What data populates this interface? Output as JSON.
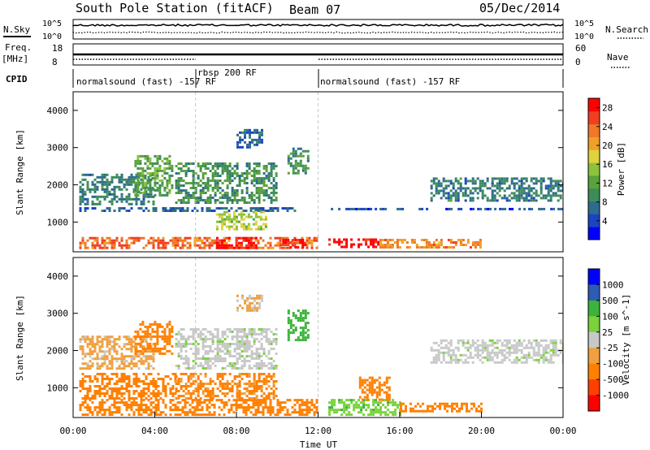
{
  "header": {
    "station": "South Pole Station (fitACF)",
    "beam": "Beam 07",
    "date": "05/Dec/2014"
  },
  "top_panels": {
    "nsky_label": "N.Sky",
    "nsky_ticks": [
      "10^5",
      "10^0"
    ],
    "nsearch_label": "N.Search",
    "nsearch_ticks": [
      "10^5",
      "10^0"
    ],
    "freq_label_1": "Freq.",
    "freq_label_2": "[MHz]",
    "freq_ticks": [
      "18",
      "8"
    ],
    "nave_label": "Nave",
    "nave_ticks": [
      "60",
      "0"
    ],
    "cpid_label": "CPID",
    "cpid_segments": [
      {
        "label": "normalsound (fast) -157 RF",
        "start_hour": 0,
        "end_hour": 6
      },
      {
        "label": "rbsp 200 RF",
        "start_hour": 6,
        "end_hour": 12
      },
      {
        "label": "normalsound (fast) -157 RF",
        "start_hour": 12,
        "end_hour": 24
      }
    ]
  },
  "colors": {
    "power_scale": [
      "#0000ff",
      "#1a44c4",
      "#2d6c8c",
      "#3c8c5a",
      "#5aa23c",
      "#8cc23c",
      "#e0d23c",
      "#f0a028",
      "#f07828",
      "#f04020",
      "#ff0000"
    ],
    "velocity_scale": [
      "#ff0000",
      "#ff4000",
      "#ff8000",
      "#f0a040",
      "#c8c8c8",
      "#c8c8c8",
      "#7ad23c",
      "#3cb43c",
      "#3c8c8c",
      "#2d5cb4",
      "#0000ff"
    ]
  },
  "chart_data": [
    {
      "type": "heatmap",
      "name": "power",
      "ylabel": "Slant Range [km]",
      "xlabel": "",
      "xlim": [
        0,
        24
      ],
      "ylim": [
        200,
        4500
      ],
      "yticks": [
        1000,
        2000,
        3000,
        4000
      ],
      "colorbar_label": "Power [dB]",
      "colorbar_ticks": [
        "4",
        "8",
        "12",
        "16",
        "20",
        "24",
        "28"
      ],
      "colorbar_range": [
        0,
        30
      ],
      "bands": [
        {
          "start_hour": 0.3,
          "end_hour": 12.0,
          "min_km": 300,
          "max_km": 600,
          "level": 24
        },
        {
          "start_hour": 7.0,
          "end_hour": 9.0,
          "min_km": 300,
          "max_km": 600,
          "level": 29
        },
        {
          "start_hour": 10.0,
          "end_hour": 11.5,
          "min_km": 320,
          "max_km": 550,
          "level": 28
        },
        {
          "start_hour": 12.5,
          "end_hour": 15.0,
          "min_km": 300,
          "max_km": 560,
          "level": 29
        },
        {
          "start_hour": 15.0,
          "end_hour": 20.0,
          "min_km": 350,
          "max_km": 550,
          "level": 22
        },
        {
          "start_hour": 0.3,
          "end_hour": 11.0,
          "min_km": 1300,
          "max_km": 1400,
          "level": 6
        },
        {
          "start_hour": 12.5,
          "end_hour": 24.0,
          "min_km": 1320,
          "max_km": 1380,
          "level": 5
        },
        {
          "start_hour": 0.3,
          "end_hour": 4.0,
          "min_km": 1500,
          "max_km": 2300,
          "level": 8
        },
        {
          "start_hour": 3.0,
          "end_hour": 4.8,
          "min_km": 1700,
          "max_km": 2800,
          "level": 12
        },
        {
          "start_hour": 5.0,
          "end_hour": 10.0,
          "min_km": 1500,
          "max_km": 2600,
          "level": 10
        },
        {
          "start_hour": 7.0,
          "end_hour": 9.5,
          "min_km": 800,
          "max_km": 1300,
          "level": 16
        },
        {
          "start_hour": 8.0,
          "end_hour": 9.3,
          "min_km": 3000,
          "max_km": 3500,
          "level": 6
        },
        {
          "start_hour": 10.5,
          "end_hour": 11.5,
          "min_km": 2300,
          "max_km": 3000,
          "level": 10
        },
        {
          "start_hour": 17.5,
          "end_hour": 24.0,
          "min_km": 1600,
          "max_km": 2200,
          "level": 8
        }
      ]
    },
    {
      "type": "heatmap",
      "name": "velocity",
      "ylabel": "Slant Range [km]",
      "xlabel": "Time UT",
      "xlim": [
        0,
        24
      ],
      "ylim": [
        200,
        4500
      ],
      "yticks": [
        1000,
        2000,
        3000,
        4000
      ],
      "xticks": [
        "00:00",
        "04:00",
        "08:00",
        "12:00",
        "16:00",
        "20:00",
        "00:00"
      ],
      "colorbar_label": "Velocity [m s^-1]",
      "colorbar_ticks": [
        "-1000",
        "-500",
        "-100",
        "-25",
        "25",
        "100",
        "500",
        "1000"
      ],
      "bands": [
        {
          "start_hour": 0.3,
          "end_hour": 12.0,
          "min_km": 300,
          "max_km": 700,
          "level": -300
        },
        {
          "start_hour": 0.3,
          "end_hour": 5.0,
          "min_km": 700,
          "max_km": 1400,
          "level": -150
        },
        {
          "start_hour": 5.0,
          "end_hour": 10.0,
          "min_km": 700,
          "max_km": 1400,
          "level": -120
        },
        {
          "start_hour": 0.3,
          "end_hour": 4.0,
          "min_km": 1500,
          "max_km": 2400,
          "level": -40
        },
        {
          "start_hour": 3.0,
          "end_hour": 4.8,
          "min_km": 1900,
          "max_km": 2800,
          "level": -150
        },
        {
          "start_hour": 5.0,
          "end_hour": 10.0,
          "min_km": 1500,
          "max_km": 2600,
          "level": 10
        },
        {
          "start_hour": 8.0,
          "end_hour": 9.3,
          "min_km": 3100,
          "max_km": 3500,
          "level": -30
        },
        {
          "start_hour": 10.5,
          "end_hour": 11.5,
          "min_km": 2300,
          "max_km": 3100,
          "level": 150
        },
        {
          "start_hour": 12.5,
          "end_hour": 16.0,
          "min_km": 300,
          "max_km": 700,
          "level": 80
        },
        {
          "start_hour": 14.0,
          "end_hour": 15.5,
          "min_km": 700,
          "max_km": 1300,
          "level": -150
        },
        {
          "start_hour": 16.0,
          "end_hour": 20.0,
          "min_km": 400,
          "max_km": 600,
          "level": -200
        },
        {
          "start_hour": 17.5,
          "end_hour": 24.0,
          "min_km": 1700,
          "max_km": 2300,
          "level": 10
        }
      ]
    }
  ]
}
